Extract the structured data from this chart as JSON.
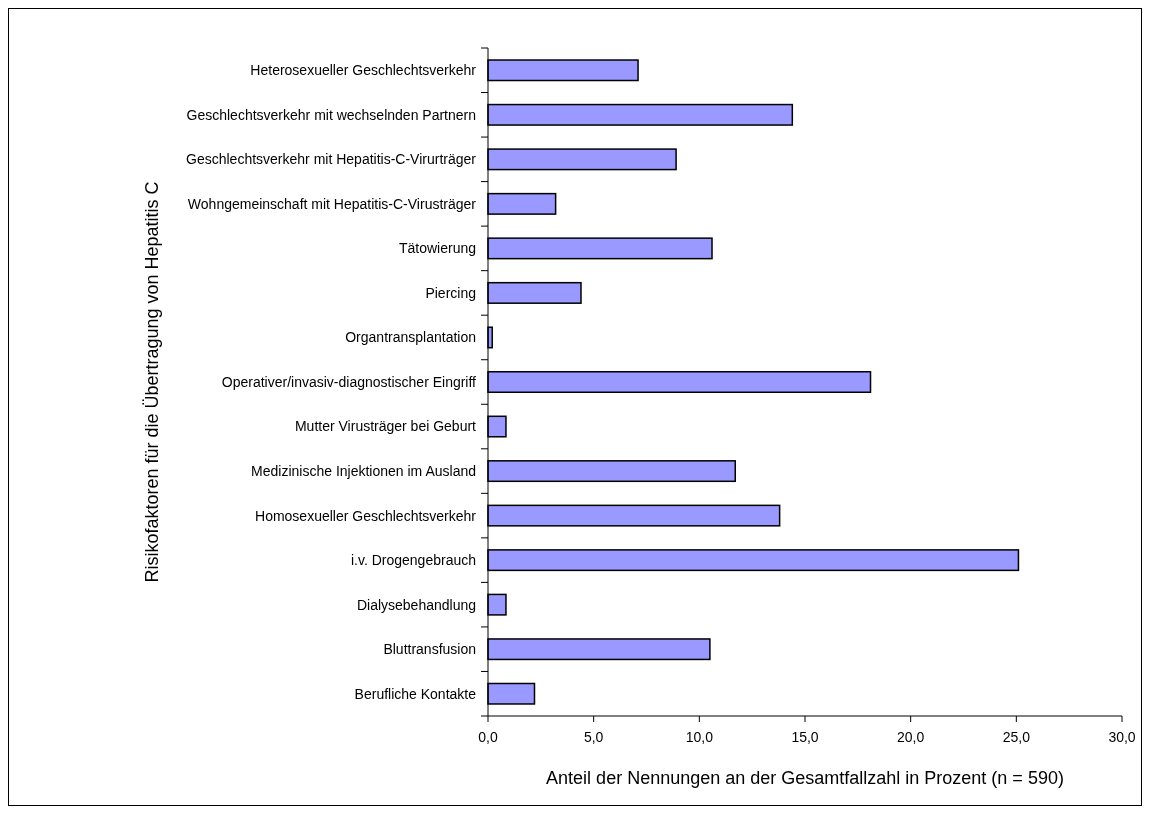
{
  "chart_data": {
    "type": "bar",
    "orientation": "horizontal",
    "xlabel": "Anteil der Nennungen an der Gesamtfallzahl in Prozent (n = 590)",
    "ylabel": "Risikofaktoren für die Übertragung von Hepatitis C",
    "categories": [
      "Heterosexueller Geschlechtsverkehr",
      "Geschlechtsverkehr mit wechselnden Partnern",
      "Geschlechtsverkehr mit Hepatitis-C-Virurträger",
      "Wohngemeinschaft mit Hepatitis-C-Virusträger",
      "Tätowierung",
      "Piercing",
      "Organtransplantation",
      "Operativer/invasiv-diagnostischer Eingriff",
      "Mutter Virusträger bei Geburt",
      "Medizinische Injektionen im Ausland",
      "Homosexueller Geschlechtsverkehr",
      "i.v. Drogengebrauch",
      "Dialysebehandlung",
      "Bluttransfusion",
      "Berufliche Kontakte"
    ],
    "values": [
      7.1,
      14.4,
      8.9,
      3.2,
      10.6,
      4.4,
      0.2,
      18.1,
      0.85,
      11.7,
      13.8,
      25.1,
      0.85,
      10.5,
      2.2
    ],
    "color": "#9999ff",
    "xlim": [
      0,
      30
    ],
    "xticks": [
      {
        "value": 0,
        "label": "0,0"
      },
      {
        "value": 5,
        "label": "5,0"
      },
      {
        "value": 10,
        "label": "10,0"
      },
      {
        "value": 15,
        "label": "15,0"
      },
      {
        "value": 20,
        "label": "20,0"
      },
      {
        "value": 25,
        "label": "25,0"
      },
      {
        "value": 30,
        "label": "30,0"
      }
    ],
    "grid": false
  }
}
